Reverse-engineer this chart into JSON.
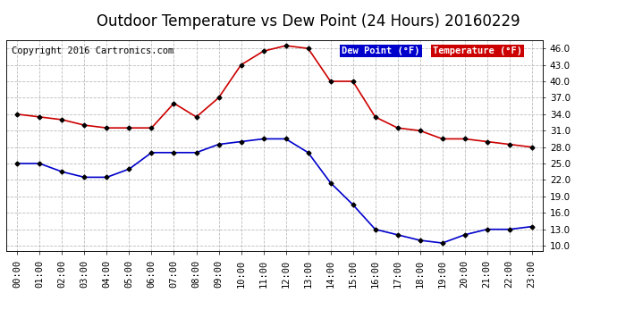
{
  "title": "Outdoor Temperature vs Dew Point (24 Hours) 20160229",
  "copyright": "Copyright 2016 Cartronics.com",
  "hours": [
    "00:00",
    "01:00",
    "02:00",
    "03:00",
    "04:00",
    "05:00",
    "06:00",
    "07:00",
    "08:00",
    "09:00",
    "10:00",
    "11:00",
    "12:00",
    "13:00",
    "14:00",
    "15:00",
    "16:00",
    "17:00",
    "18:00",
    "19:00",
    "20:00",
    "21:00",
    "22:00",
    "23:00"
  ],
  "temperature": [
    34.0,
    33.5,
    33.0,
    32.0,
    31.5,
    31.5,
    31.5,
    36.0,
    33.5,
    37.0,
    43.0,
    45.5,
    46.5,
    46.0,
    40.0,
    40.0,
    33.5,
    31.5,
    31.0,
    29.5,
    29.5,
    29.0,
    28.5,
    28.0
  ],
  "dew_point": [
    25.0,
    25.0,
    23.5,
    22.5,
    22.5,
    24.0,
    27.0,
    27.0,
    27.0,
    28.5,
    29.0,
    29.5,
    29.5,
    27.0,
    21.5,
    17.5,
    13.0,
    12.0,
    11.0,
    10.5,
    12.0,
    13.0,
    13.0,
    13.5
  ],
  "temp_color": "#cc0000",
  "dew_color": "#0000cc",
  "ylim_min": 9.0,
  "ylim_max": 47.5,
  "yticks": [
    10.0,
    13.0,
    16.0,
    19.0,
    22.0,
    25.0,
    28.0,
    31.0,
    34.0,
    37.0,
    40.0,
    43.0,
    46.0
  ],
  "bg_color": "#ffffff",
  "grid_color": "#aaaaaa",
  "legend_dew_bg": "#0000cc",
  "legend_temp_bg": "#cc0000",
  "legend_text_color": "#ffffff",
  "title_fontsize": 12,
  "copyright_fontsize": 7.5,
  "tick_fontsize": 7.5,
  "marker": "D",
  "marker_size": 2.5,
  "marker_color": "#000000",
  "line_width": 1.2
}
